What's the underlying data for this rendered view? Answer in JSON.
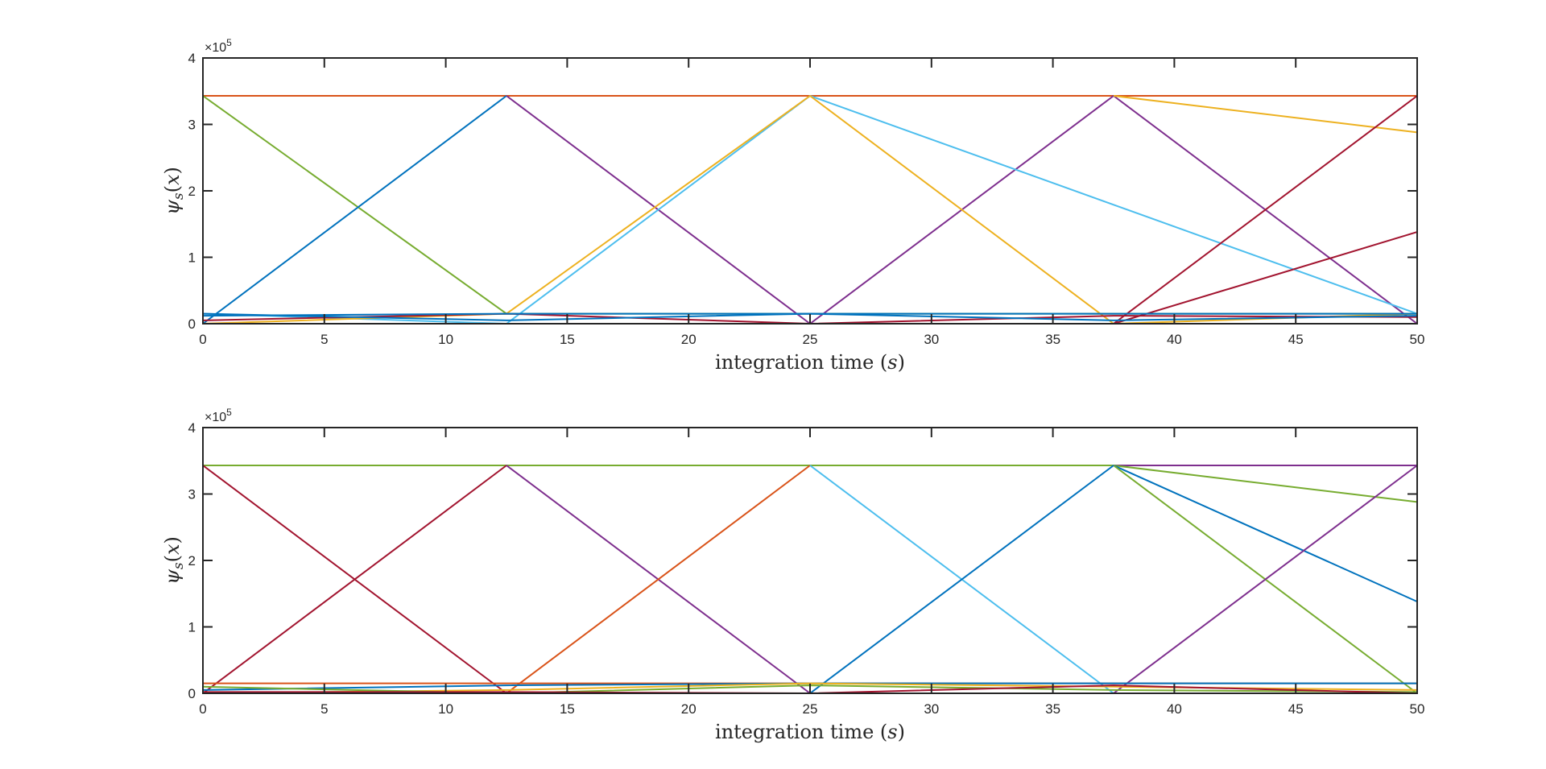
{
  "chart_data": [
    {
      "type": "line",
      "xlabel": "integration time (s)",
      "xlabel_parts": {
        "text": "integration time (",
        "var": "s",
        "close": ")"
      },
      "ylabel": "ψs(x)",
      "ylabel_parts": {
        "psi": "ψ",
        "sub": "s",
        "open": "(",
        "var": "x",
        "close": ")"
      },
      "exponent": {
        "base": "×10",
        "power": "5"
      },
      "xlim": [
        0,
        50
      ],
      "ylim": [
        0,
        4
      ],
      "xticks": [
        "0",
        "5",
        "10",
        "15",
        "20",
        "25",
        "30",
        "35",
        "40",
        "45",
        "50"
      ],
      "yticks": [
        "0",
        "1",
        "2",
        "3",
        "4"
      ],
      "grid": false,
      "series": [
        {
          "color": "#D95319",
          "x": [
            0,
            50
          ],
          "y": [
            3.43,
            3.43
          ]
        },
        {
          "color": "#77AC30",
          "x": [
            0,
            12.5,
            50
          ],
          "y": [
            3.43,
            0.15,
            0.15
          ]
        },
        {
          "color": "#0072BD",
          "x": [
            0,
            12.5
          ],
          "y": [
            0,
            3.43
          ]
        },
        {
          "color": "#7E2F8E",
          "x": [
            12.5,
            25,
            37.5,
            50
          ],
          "y": [
            3.43,
            0,
            3.43,
            0
          ]
        },
        {
          "color": "#4DBEEE",
          "x": [
            0,
            12.5,
            25,
            50
          ],
          "y": [
            0.15,
            0,
            3.43,
            0.15
          ]
        },
        {
          "color": "#EDB120",
          "x": [
            0,
            12.5,
            25,
            37.5,
            50
          ],
          "y": [
            0,
            0.15,
            3.43,
            0,
            0.15
          ]
        },
        {
          "color": "#EDB120",
          "x": [
            37.5,
            50
          ],
          "y": [
            3.43,
            2.88
          ]
        },
        {
          "color": "#A2142F",
          "x": [
            37.5,
            50
          ],
          "y": [
            0,
            3.43
          ]
        },
        {
          "color": "#A2142F",
          "x": [
            37.5,
            50
          ],
          "y": [
            0,
            1.38
          ]
        },
        {
          "color": "#A2142F",
          "x": [
            0,
            12.5,
            25,
            37.5,
            50
          ],
          "y": [
            0.05,
            0.15,
            0,
            0.12,
            0.1
          ]
        },
        {
          "color": "#0072BD",
          "x": [
            0,
            12.5,
            25,
            37.5,
            50
          ],
          "y": [
            0.15,
            0.05,
            0.15,
            0.05,
            0.12
          ]
        },
        {
          "color": "#7E2F8E",
          "x": [
            0,
            50
          ],
          "y": [
            0,
            0
          ]
        },
        {
          "color": "#0072BD",
          "x": [
            0,
            12.5,
            25,
            37.5,
            50
          ],
          "y": [
            0.12,
            0.15,
            0.15,
            0.15,
            0.15
          ]
        }
      ]
    },
    {
      "type": "line",
      "xlabel": "integration time (s)",
      "xlabel_parts": {
        "text": "integration time (",
        "var": "s",
        "close": ")"
      },
      "ylabel": "ψs(x)",
      "ylabel_parts": {
        "psi": "ψ",
        "sub": "s",
        "open": "(",
        "var": "x",
        "close": ")"
      },
      "exponent": {
        "base": "×10",
        "power": "5"
      },
      "xlim": [
        0,
        50
      ],
      "ylim": [
        0,
        4
      ],
      "xticks": [
        "0",
        "5",
        "10",
        "15",
        "20",
        "25",
        "30",
        "35",
        "40",
        "45",
        "50"
      ],
      "yticks": [
        "0",
        "1",
        "2",
        "3",
        "4"
      ],
      "grid": false,
      "series": [
        {
          "color": "#77AC30",
          "x": [
            0,
            37.5
          ],
          "y": [
            3.43,
            3.43
          ]
        },
        {
          "color": "#7E2F8E",
          "x": [
            37.5,
            50
          ],
          "y": [
            3.43,
            3.43
          ]
        },
        {
          "color": "#77AC30",
          "x": [
            37.5,
            50
          ],
          "y": [
            3.43,
            2.88
          ]
        },
        {
          "color": "#0072BD",
          "x": [
            37.5,
            50
          ],
          "y": [
            3.43,
            1.38
          ]
        },
        {
          "color": "#77AC30",
          "x": [
            37.5,
            50
          ],
          "y": [
            3.43,
            0
          ]
        },
        {
          "color": "#A2142F",
          "x": [
            0,
            12.5
          ],
          "y": [
            3.43,
            0
          ]
        },
        {
          "color": "#A2142F",
          "x": [
            0,
            12.5
          ],
          "y": [
            0,
            3.43
          ]
        },
        {
          "color": "#7E2F8E",
          "x": [
            12.5,
            25
          ],
          "y": [
            3.43,
            0
          ]
        },
        {
          "color": "#D95319",
          "x": [
            12.5,
            25
          ],
          "y": [
            0,
            3.43
          ]
        },
        {
          "color": "#4DBEEE",
          "x": [
            25,
            37.5
          ],
          "y": [
            3.43,
            0
          ]
        },
        {
          "color": "#0072BD",
          "x": [
            25,
            37.5
          ],
          "y": [
            0,
            3.43
          ]
        },
        {
          "color": "#7E2F8E",
          "x": [
            37.5,
            50
          ],
          "y": [
            0,
            3.43
          ]
        },
        {
          "color": "#D95319",
          "x": [
            0,
            50
          ],
          "y": [
            0.15,
            0.15
          ]
        },
        {
          "color": "#0072BD",
          "x": [
            0,
            12.5,
            25,
            37.5,
            50
          ],
          "y": [
            0.05,
            0.12,
            0.15,
            0.15,
            0.15
          ]
        },
        {
          "color": "#EDB120",
          "x": [
            0,
            12.5,
            25,
            37.5,
            50
          ],
          "y": [
            0,
            0.05,
            0.15,
            0.1,
            0.05
          ]
        },
        {
          "color": "#77AC30",
          "x": [
            0,
            12.5,
            25,
            37.5,
            50
          ],
          "y": [
            0.1,
            0,
            0.12,
            0.05,
            0.02
          ]
        },
        {
          "color": "#A2142F",
          "x": [
            0,
            12.5,
            25,
            37.5,
            50
          ],
          "y": [
            0.02,
            0.02,
            0,
            0.12,
            0
          ]
        },
        {
          "color": "#D95319",
          "x": [
            0,
            50
          ],
          "y": [
            0,
            0
          ]
        }
      ]
    }
  ]
}
